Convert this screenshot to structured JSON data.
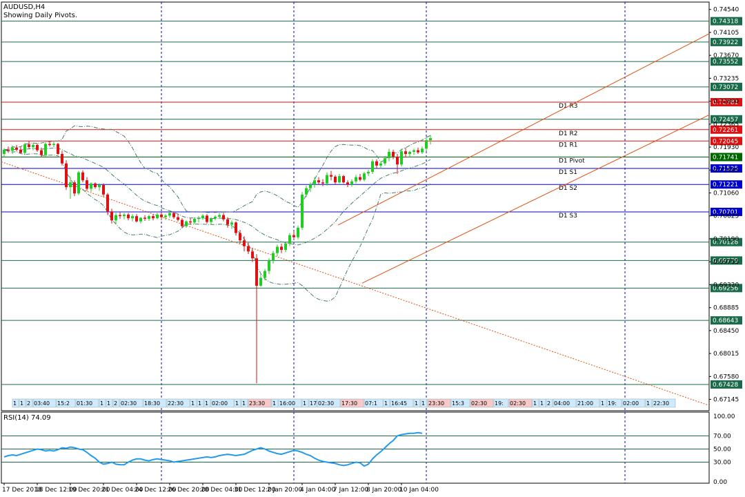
{
  "header": {
    "symbol": "AUDUSD,H4",
    "subtitle": "Showing Daily Pivots."
  },
  "colors": {
    "bull": "#22cc22",
    "bear": "#dd1111",
    "grid": "#0000cc",
    "horizontal_line": "#1a6b4a",
    "resistance": "#dd1111",
    "support": "#0000cc",
    "pivot": "#006600",
    "trend": "#e05010",
    "bands": "#4a7a6a",
    "rsi": "#2299ee"
  },
  "chart_data": {
    "type": "candlestick",
    "price_axis": {
      "ylim": [
        0.6693,
        0.7468
      ],
      "tick_labels": [
        "0.74540",
        "0.74105",
        "0.73670",
        "0.73235",
        "0.72800",
        "0.72365",
        "0.71930",
        "0.71495",
        "0.71060",
        "0.70625",
        "0.70190",
        "0.69755",
        "0.69320",
        "0.68885",
        "0.68450",
        "0.68015",
        "0.67580",
        "0.67145"
      ],
      "tick_values": [
        0.7454,
        0.74105,
        0.7367,
        0.73235,
        0.728,
        0.72365,
        0.7193,
        0.71495,
        0.7106,
        0.70625,
        0.7019,
        0.69755,
        0.6932,
        0.68885,
        0.6845,
        0.68015,
        0.6758,
        0.67145
      ]
    },
    "time_axis": {
      "labels": [
        "17 Dec 2018",
        "18 Dec 12:00",
        "19 Dec 20:00",
        "21 Dec 04:00",
        "24 Dec 12:00",
        "26 Dec 20:00",
        "28 Dec 04:00",
        "31 Dec 12:00",
        "2 Jan 20:00",
        "4 Jan 04:00",
        "7 Jan 12:00",
        "8 Jan 20:00",
        "10 Jan 04:00"
      ],
      "label_index": [
        0,
        8,
        16,
        24,
        32,
        40,
        48,
        56,
        64,
        72,
        80,
        88,
        96
      ]
    },
    "horizontal_levels": [
      {
        "value": 0.74318,
        "label": "0.74318",
        "role": "level"
      },
      {
        "value": 0.73922,
        "label": "0.73922",
        "role": "level"
      },
      {
        "value": 0.73552,
        "label": "0.73552",
        "role": "level"
      },
      {
        "value": 0.73072,
        "label": "0.73072",
        "role": "level"
      },
      {
        "value": 0.72781,
        "label": "0.72781",
        "role": "resistance",
        "name": "D1 R3"
      },
      {
        "value": 0.72457,
        "label": "0.72457",
        "role": "level"
      },
      {
        "value": 0.72261,
        "label": "0.72261",
        "role": "resistance",
        "name": "D1 R2"
      },
      {
        "value": 0.72045,
        "label": "0.72045",
        "role": "resistance",
        "name": "D1 R1"
      },
      {
        "value": 0.71741,
        "label": "0.71741",
        "role": "pivot",
        "name": "D1 Pivot"
      },
      {
        "value": 0.71525,
        "label": "0.71525",
        "role": "support",
        "name": "D1 S1"
      },
      {
        "value": 0.71221,
        "label": "0.71221",
        "role": "support",
        "name": "D1 S2"
      },
      {
        "value": 0.70701,
        "label": "0.70701",
        "role": "support",
        "name": "D1 S3"
      },
      {
        "value": 0.70128,
        "label": "0.70128",
        "role": "level"
      },
      {
        "value": 0.69779,
        "label": "0.69779",
        "role": "level"
      },
      {
        "value": 0.69256,
        "label": "0.69256",
        "role": "level"
      },
      {
        "value": 0.68643,
        "label": "0.68643",
        "role": "level"
      },
      {
        "value": 0.67428,
        "label": "0.67428",
        "role": "level"
      }
    ],
    "candles": [
      [
        0.718,
        0.7191,
        0.7174,
        0.7188
      ],
      [
        0.7188,
        0.7194,
        0.7182,
        0.7186
      ],
      [
        0.7186,
        0.7196,
        0.718,
        0.7192
      ],
      [
        0.7192,
        0.7197,
        0.7185,
        0.7188
      ],
      [
        0.7188,
        0.7194,
        0.7181,
        0.7182
      ],
      [
        0.7182,
        0.7201,
        0.7178,
        0.7198
      ],
      [
        0.7198,
        0.7204,
        0.719,
        0.7193
      ],
      [
        0.7193,
        0.7201,
        0.7187,
        0.7197
      ],
      [
        0.7197,
        0.72,
        0.7184,
        0.7187
      ],
      [
        0.7187,
        0.7192,
        0.7174,
        0.7178
      ],
      [
        0.7178,
        0.7202,
        0.7175,
        0.7199
      ],
      [
        0.7199,
        0.7204,
        0.7194,
        0.7197
      ],
      [
        0.7197,
        0.7203,
        0.7193,
        0.7199
      ],
      [
        0.7199,
        0.7201,
        0.7178,
        0.718
      ],
      [
        0.718,
        0.7186,
        0.7158,
        0.7162
      ],
      [
        0.7162,
        0.7168,
        0.7112,
        0.7117
      ],
      [
        0.7117,
        0.7137,
        0.7095,
        0.7126
      ],
      [
        0.7126,
        0.713,
        0.71,
        0.7105
      ],
      [
        0.7105,
        0.7148,
        0.7102,
        0.7145
      ],
      [
        0.7145,
        0.7149,
        0.7126,
        0.713
      ],
      [
        0.713,
        0.7136,
        0.711,
        0.7114
      ],
      [
        0.7114,
        0.7126,
        0.7108,
        0.7124
      ],
      [
        0.7124,
        0.7126,
        0.7114,
        0.7117
      ],
      [
        0.7117,
        0.7124,
        0.711,
        0.7121
      ],
      [
        0.7121,
        0.7124,
        0.7099,
        0.7103
      ],
      [
        0.7103,
        0.7106,
        0.7064,
        0.7071
      ],
      [
        0.7071,
        0.7076,
        0.7048,
        0.7054
      ],
      [
        0.7054,
        0.7068,
        0.7047,
        0.7064
      ],
      [
        0.7064,
        0.707,
        0.7057,
        0.7062
      ],
      [
        0.7062,
        0.7068,
        0.7056,
        0.7065
      ],
      [
        0.7065,
        0.7068,
        0.7054,
        0.7058
      ],
      [
        0.7058,
        0.7066,
        0.7052,
        0.7062
      ],
      [
        0.7062,
        0.7066,
        0.705,
        0.7052
      ],
      [
        0.7052,
        0.706,
        0.7048,
        0.7059
      ],
      [
        0.7059,
        0.7064,
        0.7053,
        0.7057
      ],
      [
        0.7057,
        0.7065,
        0.7053,
        0.7062
      ],
      [
        0.7062,
        0.7066,
        0.7054,
        0.7058
      ],
      [
        0.7058,
        0.7068,
        0.7056,
        0.7065
      ],
      [
        0.7065,
        0.707,
        0.7054,
        0.706
      ],
      [
        0.706,
        0.7066,
        0.7055,
        0.7063
      ],
      [
        0.7063,
        0.7072,
        0.7059,
        0.7068
      ],
      [
        0.7068,
        0.707,
        0.7057,
        0.706
      ],
      [
        0.706,
        0.7066,
        0.7052,
        0.7055
      ],
      [
        0.7055,
        0.7058,
        0.704,
        0.7043
      ],
      [
        0.7043,
        0.7054,
        0.704,
        0.7052
      ],
      [
        0.7052,
        0.7058,
        0.7046,
        0.705
      ],
      [
        0.705,
        0.706,
        0.7047,
        0.7057
      ],
      [
        0.7057,
        0.7062,
        0.705,
        0.7058
      ],
      [
        0.7058,
        0.7066,
        0.7055,
        0.7063
      ],
      [
        0.7063,
        0.7066,
        0.7048,
        0.7051
      ],
      [
        0.7051,
        0.706,
        0.7046,
        0.7058
      ],
      [
        0.7058,
        0.7064,
        0.7054,
        0.7061
      ],
      [
        0.7061,
        0.7068,
        0.7057,
        0.7064
      ],
      [
        0.7064,
        0.7068,
        0.7052,
        0.7056
      ],
      [
        0.7056,
        0.706,
        0.704,
        0.7046
      ],
      [
        0.7046,
        0.7054,
        0.7038,
        0.705
      ],
      [
        0.705,
        0.7052,
        0.7025,
        0.703
      ],
      [
        0.703,
        0.7036,
        0.701,
        0.7016
      ],
      [
        0.7016,
        0.7024,
        0.6995,
        0.7005
      ],
      [
        0.7005,
        0.7012,
        0.699,
        0.6995
      ],
      [
        0.6995,
        0.7001,
        0.6975,
        0.6982
      ],
      [
        0.6982,
        0.699,
        0.6745,
        0.693
      ],
      [
        0.693,
        0.6952,
        0.6928,
        0.6945
      ],
      [
        0.6945,
        0.6962,
        0.694,
        0.6958
      ],
      [
        0.6958,
        0.6982,
        0.6952,
        0.6978
      ],
      [
        0.6978,
        0.6996,
        0.6972,
        0.6992
      ],
      [
        0.6992,
        0.7008,
        0.6986,
        0.7004
      ],
      [
        0.7004,
        0.701,
        0.6992,
        0.6998
      ],
      [
        0.6998,
        0.7012,
        0.6994,
        0.701
      ],
      [
        0.701,
        0.703,
        0.7005,
        0.7026
      ],
      [
        0.7026,
        0.7034,
        0.7018,
        0.7022
      ],
      [
        0.7022,
        0.7044,
        0.7018,
        0.704
      ],
      [
        0.704,
        0.7108,
        0.7036,
        0.7103
      ],
      [
        0.7103,
        0.712,
        0.7098,
        0.7115
      ],
      [
        0.7115,
        0.7126,
        0.7108,
        0.7122
      ],
      [
        0.7122,
        0.7136,
        0.7116,
        0.713
      ],
      [
        0.713,
        0.7136,
        0.7122,
        0.7126
      ],
      [
        0.7126,
        0.7132,
        0.7119,
        0.7124
      ],
      [
        0.7124,
        0.7145,
        0.712,
        0.714
      ],
      [
        0.714,
        0.7148,
        0.713,
        0.7137
      ],
      [
        0.7137,
        0.714,
        0.7122,
        0.7126
      ],
      [
        0.7126,
        0.7142,
        0.7124,
        0.7138
      ],
      [
        0.7138,
        0.714,
        0.7124,
        0.7126
      ],
      [
        0.7126,
        0.713,
        0.7117,
        0.7122
      ],
      [
        0.7122,
        0.7132,
        0.7118,
        0.7128
      ],
      [
        0.7128,
        0.714,
        0.7124,
        0.7136
      ],
      [
        0.7136,
        0.7142,
        0.7128,
        0.7131
      ],
      [
        0.7131,
        0.7146,
        0.7128,
        0.7143
      ],
      [
        0.7143,
        0.715,
        0.7138,
        0.7146
      ],
      [
        0.7146,
        0.717,
        0.7142,
        0.7166
      ],
      [
        0.7166,
        0.717,
        0.7152,
        0.7158
      ],
      [
        0.7158,
        0.7166,
        0.7152,
        0.7162
      ],
      [
        0.7162,
        0.7176,
        0.7158,
        0.7172
      ],
      [
        0.7172,
        0.719,
        0.7166,
        0.7184
      ],
      [
        0.7184,
        0.7188,
        0.717,
        0.7175
      ],
      [
        0.7175,
        0.718,
        0.7142,
        0.716
      ],
      [
        0.716,
        0.719,
        0.7156,
        0.7185
      ],
      [
        0.7185,
        0.7192,
        0.7174,
        0.718
      ],
      [
        0.718,
        0.7186,
        0.7174,
        0.7184
      ],
      [
        0.7184,
        0.719,
        0.7178,
        0.7187
      ],
      [
        0.7187,
        0.7192,
        0.718,
        0.7183
      ],
      [
        0.7183,
        0.7194,
        0.718,
        0.719
      ],
      [
        0.719,
        0.7212,
        0.7185,
        0.7206
      ],
      [
        0.7206,
        0.7216,
        0.7198,
        0.721
      ]
    ],
    "candle_colors": "bull = green body, bear = red body",
    "pivot_markers": [
      {
        "x_index": 18,
        "label": "15:2"
      },
      {
        "x_index": 22,
        "label": "01:30"
      },
      {
        "x_index": 30,
        "label": "02:30"
      },
      {
        "x_index": 35,
        "label": "18:30"
      },
      {
        "x_index": 45,
        "label": "22:30"
      },
      {
        "x_index": 56,
        "label": "02:00"
      },
      {
        "x_index": 66,
        "label": "23:30"
      },
      {
        "x_index": 76,
        "label": "16:00"
      },
      {
        "x_index": 84,
        "label": "02:30"
      },
      {
        "x_index": 92,
        "label": "17:30"
      },
      {
        "x_index": 97,
        "label": "07:1"
      },
      {
        "x_index": 102,
        "label": "16:45"
      }
    ],
    "marker_row": [
      "1",
      "1",
      "2",
      "03:40",
      "15:2",
      "01:30",
      "1",
      "1",
      "2",
      "02:30",
      "18:30",
      "22:30",
      "1",
      "1",
      "1",
      "02:00",
      "1",
      "1",
      "23:30",
      "1",
      "16:00",
      "1",
      "17",
      "02:30",
      "17:30",
      "07:1",
      "1",
      "16:45",
      "1",
      "1",
      "23:30",
      "15:3",
      "02:30",
      "19:",
      "02:30",
      "1",
      "1",
      "2",
      "04:00",
      "21:00",
      "1",
      "19:",
      "02:00",
      "1",
      "22:30"
    ],
    "rsi": {
      "label": "RSI(14) 74.09",
      "ylim": [
        0,
        100
      ],
      "tick_labels": [
        "100.00",
        "70.00",
        "50.00",
        "30.00",
        "0.00"
      ],
      "tick_values": [
        100,
        70,
        50,
        30,
        0
      ],
      "levels": [
        70,
        50,
        30
      ],
      "values": [
        38,
        40,
        41,
        40,
        42,
        44,
        46,
        48,
        50,
        49,
        47,
        48,
        47,
        49,
        52,
        51,
        53,
        52,
        50,
        49,
        45,
        40,
        36,
        30,
        27,
        28,
        30,
        27,
        26,
        26,
        30,
        33,
        35,
        35,
        33,
        32,
        34,
        35,
        34,
        33,
        32,
        30,
        31,
        32,
        33,
        34,
        35,
        36,
        37,
        38,
        37,
        38,
        40,
        41,
        42,
        41,
        40,
        41,
        42,
        45,
        48,
        50,
        52,
        50,
        47,
        45,
        43,
        42,
        44,
        46,
        48,
        47,
        45,
        42,
        40,
        36,
        33,
        31,
        30,
        29,
        28,
        26,
        25,
        26,
        28,
        30,
        29,
        24,
        27,
        35,
        41,
        46,
        52,
        58,
        63,
        70,
        72,
        73,
        74,
        74,
        75,
        74
      ]
    }
  }
}
